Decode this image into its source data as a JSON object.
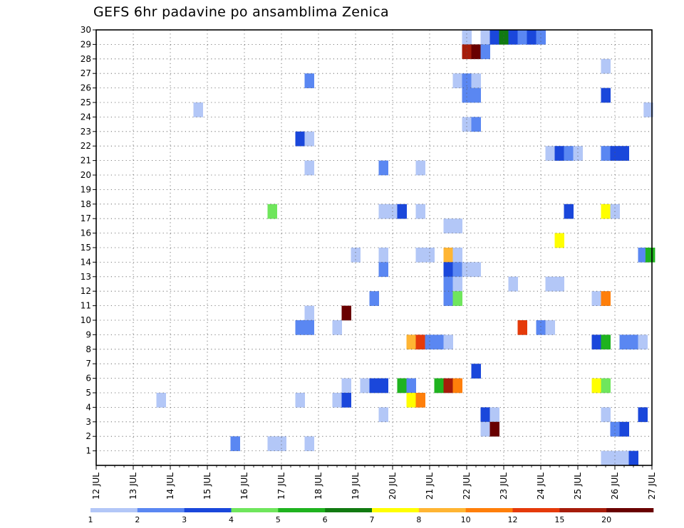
{
  "chart_data": {
    "type": "heatmap",
    "title": "GEFS 6hr padavine po ansamblima Zenica",
    "xlabel": "",
    "ylabel": "",
    "x_tick_labels": [
      "12 JUL",
      "13 JUL",
      "14 JUL",
      "15 JUL",
      "16 JUL",
      "17 JUL",
      "18 JUL",
      "19 JUL",
      "20 JUL",
      "21 JUL",
      "22 JUL",
      "23 JUL",
      "24 JUL",
      "25 JUL",
      "26 JUL",
      "27 JUL"
    ],
    "xlim": [
      12,
      27
    ],
    "y_tick_labels": [
      1,
      2,
      3,
      4,
      5,
      6,
      7,
      8,
      9,
      10,
      11,
      12,
      13,
      14,
      15,
      16,
      17,
      18,
      19,
      20,
      21,
      22,
      23,
      24,
      25,
      26,
      27,
      28,
      29,
      30
    ],
    "ylim": [
      0,
      30
    ],
    "grid": true,
    "colorbar": {
      "labels": [
        "1",
        "2",
        "3",
        "4",
        "5",
        "6",
        "7",
        "8",
        "10",
        "12",
        "15",
        "20"
      ],
      "colors": [
        "#b3c7f7",
        "#5a87f2",
        "#1a47db",
        "#6fe65c",
        "#1fb31f",
        "#117a11",
        "#ffff00",
        "#ffb533",
        "#ff7f0a",
        "#e53a0a",
        "#a61c0a",
        "#690000"
      ]
    },
    "cells": [
      {
        "x": 22.0,
        "y": 30,
        "c": 0
      },
      {
        "x": 22.5,
        "y": 30,
        "c": 0
      },
      {
        "x": 22.75,
        "y": 30,
        "c": 2
      },
      {
        "x": 23.0,
        "y": 30,
        "c": 5
      },
      {
        "x": 23.25,
        "y": 30,
        "c": 2
      },
      {
        "x": 23.5,
        "y": 30,
        "c": 1
      },
      {
        "x": 23.75,
        "y": 30,
        "c": 2
      },
      {
        "x": 24.0,
        "y": 30,
        "c": 1
      },
      {
        "x": 22.0,
        "y": 29,
        "c": 10
      },
      {
        "x": 22.25,
        "y": 29,
        "c": 11
      },
      {
        "x": 22.5,
        "y": 29,
        "c": 1
      },
      {
        "x": 25.75,
        "y": 28,
        "c": 0
      },
      {
        "x": 17.75,
        "y": 27,
        "c": 1
      },
      {
        "x": 21.75,
        "y": 27,
        "c": 0
      },
      {
        "x": 22.0,
        "y": 27,
        "c": 1
      },
      {
        "x": 22.25,
        "y": 27,
        "c": 0
      },
      {
        "x": 22.0,
        "y": 26,
        "c": 1
      },
      {
        "x": 22.25,
        "y": 26,
        "c": 1
      },
      {
        "x": 25.75,
        "y": 26,
        "c": 2
      },
      {
        "x": 14.75,
        "y": 25,
        "c": 0
      },
      {
        "x": 26.9,
        "y": 25,
        "c": 0
      },
      {
        "x": 22.0,
        "y": 24,
        "c": 0
      },
      {
        "x": 22.25,
        "y": 24,
        "c": 1
      },
      {
        "x": 17.5,
        "y": 23,
        "c": 2
      },
      {
        "x": 17.75,
        "y": 23,
        "c": 0
      },
      {
        "x": 24.25,
        "y": 22,
        "c": 0
      },
      {
        "x": 24.5,
        "y": 22,
        "c": 2
      },
      {
        "x": 24.75,
        "y": 22,
        "c": 1
      },
      {
        "x": 25.0,
        "y": 22,
        "c": 0
      },
      {
        "x": 25.75,
        "y": 22,
        "c": 1
      },
      {
        "x": 26.0,
        "y": 22,
        "c": 2
      },
      {
        "x": 26.25,
        "y": 22,
        "c": 2
      },
      {
        "x": 17.75,
        "y": 21,
        "c": 0
      },
      {
        "x": 19.75,
        "y": 21,
        "c": 1
      },
      {
        "x": 20.75,
        "y": 21,
        "c": 0
      },
      {
        "x": 16.75,
        "y": 18,
        "c": 3
      },
      {
        "x": 19.75,
        "y": 18,
        "c": 0
      },
      {
        "x": 20.0,
        "y": 18,
        "c": 0
      },
      {
        "x": 20.25,
        "y": 18,
        "c": 2
      },
      {
        "x": 20.75,
        "y": 18,
        "c": 0
      },
      {
        "x": 24.75,
        "y": 18,
        "c": 2
      },
      {
        "x": 25.75,
        "y": 18,
        "c": 6
      },
      {
        "x": 26.0,
        "y": 18,
        "c": 0
      },
      {
        "x": 21.5,
        "y": 17,
        "c": 0
      },
      {
        "x": 21.75,
        "y": 17,
        "c": 0
      },
      {
        "x": 24.5,
        "y": 16,
        "c": 6
      },
      {
        "x": 19.0,
        "y": 15,
        "c": 0
      },
      {
        "x": 19.75,
        "y": 15,
        "c": 0
      },
      {
        "x": 20.75,
        "y": 15,
        "c": 0
      },
      {
        "x": 21.0,
        "y": 15,
        "c": 0
      },
      {
        "x": 21.5,
        "y": 15,
        "c": 7
      },
      {
        "x": 21.75,
        "y": 15,
        "c": 0
      },
      {
        "x": 26.75,
        "y": 15,
        "c": 1
      },
      {
        "x": 26.95,
        "y": 15,
        "c": 4
      },
      {
        "x": 19.75,
        "y": 14,
        "c": 1
      },
      {
        "x": 21.5,
        "y": 14,
        "c": 2
      },
      {
        "x": 21.75,
        "y": 14,
        "c": 1
      },
      {
        "x": 22.0,
        "y": 14,
        "c": 0
      },
      {
        "x": 22.25,
        "y": 14,
        "c": 0
      },
      {
        "x": 21.5,
        "y": 13,
        "c": 1
      },
      {
        "x": 21.75,
        "y": 13,
        "c": 0
      },
      {
        "x": 23.25,
        "y": 13,
        "c": 0
      },
      {
        "x": 24.25,
        "y": 13,
        "c": 0
      },
      {
        "x": 24.5,
        "y": 13,
        "c": 0
      },
      {
        "x": 19.5,
        "y": 12,
        "c": 1
      },
      {
        "x": 21.5,
        "y": 12,
        "c": 1
      },
      {
        "x": 21.75,
        "y": 12,
        "c": 3
      },
      {
        "x": 25.5,
        "y": 12,
        "c": 0
      },
      {
        "x": 25.75,
        "y": 12,
        "c": 8
      },
      {
        "x": 17.75,
        "y": 11,
        "c": 0
      },
      {
        "x": 18.75,
        "y": 11,
        "c": 11
      },
      {
        "x": 17.5,
        "y": 10,
        "c": 1
      },
      {
        "x": 17.75,
        "y": 10,
        "c": 1
      },
      {
        "x": 18.5,
        "y": 10,
        "c": 0
      },
      {
        "x": 23.5,
        "y": 10,
        "c": 9
      },
      {
        "x": 24.0,
        "y": 10,
        "c": 1
      },
      {
        "x": 24.25,
        "y": 10,
        "c": 0
      },
      {
        "x": 20.5,
        "y": 9,
        "c": 7
      },
      {
        "x": 20.75,
        "y": 9,
        "c": 9
      },
      {
        "x": 21.0,
        "y": 9,
        "c": 1
      },
      {
        "x": 21.25,
        "y": 9,
        "c": 1
      },
      {
        "x": 21.5,
        "y": 9,
        "c": 0
      },
      {
        "x": 25.5,
        "y": 9,
        "c": 2
      },
      {
        "x": 25.75,
        "y": 9,
        "c": 4
      },
      {
        "x": 26.25,
        "y": 9,
        "c": 1
      },
      {
        "x": 26.5,
        "y": 9,
        "c": 1
      },
      {
        "x": 26.75,
        "y": 9,
        "c": 0
      },
      {
        "x": 22.25,
        "y": 7,
        "c": 2
      },
      {
        "x": 18.75,
        "y": 6,
        "c": 0
      },
      {
        "x": 19.25,
        "y": 6,
        "c": 0
      },
      {
        "x": 19.5,
        "y": 6,
        "c": 2
      },
      {
        "x": 19.75,
        "y": 6,
        "c": 2
      },
      {
        "x": 20.25,
        "y": 6,
        "c": 4
      },
      {
        "x": 20.5,
        "y": 6,
        "c": 1
      },
      {
        "x": 21.25,
        "y": 6,
        "c": 4
      },
      {
        "x": 21.5,
        "y": 6,
        "c": 10
      },
      {
        "x": 21.75,
        "y": 6,
        "c": 8
      },
      {
        "x": 25.5,
        "y": 6,
        "c": 6
      },
      {
        "x": 25.75,
        "y": 6,
        "c": 3
      },
      {
        "x": 13.75,
        "y": 5,
        "c": 0
      },
      {
        "x": 17.5,
        "y": 5,
        "c": 0
      },
      {
        "x": 18.5,
        "y": 5,
        "c": 0
      },
      {
        "x": 18.75,
        "y": 5,
        "c": 2
      },
      {
        "x": 20.5,
        "y": 5,
        "c": 6
      },
      {
        "x": 20.75,
        "y": 5,
        "c": 8
      },
      {
        "x": 19.75,
        "y": 4,
        "c": 0
      },
      {
        "x": 22.5,
        "y": 4,
        "c": 2
      },
      {
        "x": 22.75,
        "y": 4,
        "c": 0
      },
      {
        "x": 25.75,
        "y": 4,
        "c": 0
      },
      {
        "x": 26.75,
        "y": 4,
        "c": 2
      },
      {
        "x": 22.5,
        "y": 3,
        "c": 0
      },
      {
        "x": 22.75,
        "y": 3,
        "c": 11
      },
      {
        "x": 26.0,
        "y": 3,
        "c": 1
      },
      {
        "x": 26.25,
        "y": 3,
        "c": 2
      },
      {
        "x": 15.75,
        "y": 2,
        "c": 1
      },
      {
        "x": 16.75,
        "y": 2,
        "c": 0
      },
      {
        "x": 17.0,
        "y": 2,
        "c": 0
      },
      {
        "x": 17.75,
        "y": 2,
        "c": 0
      },
      {
        "x": 25.75,
        "y": 1,
        "c": 0
      },
      {
        "x": 26.0,
        "y": 1,
        "c": 0
      },
      {
        "x": 26.25,
        "y": 1,
        "c": 0
      },
      {
        "x": 26.5,
        "y": 1,
        "c": 2
      }
    ]
  }
}
